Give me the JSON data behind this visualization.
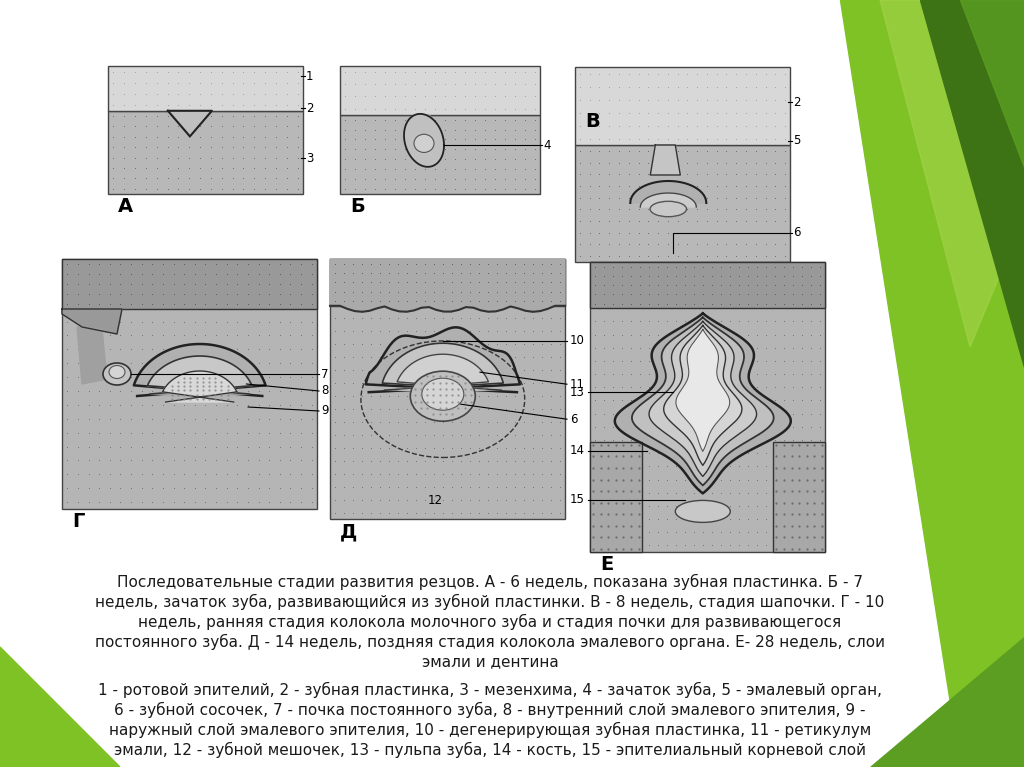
{
  "bg_color": "#ffffff",
  "text_color": "#1a1a1a",
  "caption_lines": [
    "Последовательные стадии развития резцов. А - 6 недель, показана зубная пластинка. Б - 7",
    "недель, зачаток зуба, развивающийся из зубной пластинки. В - 8 недель, стадия шапочки. Г - 10",
    "недель, ранняя стадия колокола молочного зуба и стадия почки для развивающегося",
    "постоянного зуба. Д - 14 недель, поздняя стадия колокола эмалевого органа. Е- 28 недель, слои",
    "эмали и дентина",
    "1 - ротовой эпителий, 2 - зубная пластинка, 3 - мезенхима, 4 - зачаток зуба, 5 - эмалевый орган,",
    "6 - зубной сосочек, 7 - почка постоянного зуба, 8 - внутренний слой эмалевого эпителия, 9 -",
    "наружный слой эмалевого эпителия, 10 - дегенерирующая зубная пластинка, 11 - ретикулум",
    "эмали, 12 - зубной мешочек, 13 - пульпа зуба, 14 - кость, 15 - эпителиальный корневой слой"
  ],
  "label_A": "А",
  "label_B": "Б",
  "label_V": "В",
  "label_G": "Г",
  "label_D": "Д",
  "label_E": "Е",
  "dot_color": "#888888",
  "tissue_dark": "#999999",
  "tissue_light": "#cccccc",
  "tissue_med": "#b0b0b0",
  "outline_color": "#222222",
  "green1": "#5b9e22",
  "green2": "#7ec225",
  "green3": "#3d7215",
  "green4": "#a6d44a"
}
